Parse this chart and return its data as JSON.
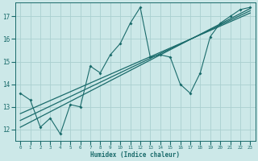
{
  "xlabel": "Humidex (Indice chaleur)",
  "x_ticks": [
    0,
    1,
    2,
    3,
    4,
    5,
    6,
    7,
    8,
    9,
    10,
    11,
    12,
    13,
    14,
    15,
    16,
    17,
    18,
    19,
    20,
    21,
    22,
    23
  ],
  "ylim": [
    11.5,
    17.6
  ],
  "xlim": [
    -0.5,
    23.5
  ],
  "yticks": [
    12,
    13,
    14,
    15,
    16,
    17
  ],
  "bg_color": "#cce8e8",
  "grid_color": "#aad0d0",
  "line_color": "#1a6b6b",
  "zigzag_x": [
    0,
    1,
    2,
    3,
    4,
    5,
    6,
    7,
    8,
    9,
    10,
    11,
    12,
    13,
    14,
    15,
    16,
    17,
    18,
    19,
    20,
    21,
    22,
    23
  ],
  "zigzag_y": [
    13.6,
    13.3,
    12.1,
    12.5,
    11.8,
    13.1,
    13.0,
    14.8,
    14.5,
    15.3,
    15.8,
    16.7,
    17.4,
    15.2,
    15.3,
    15.2,
    14.0,
    13.6,
    14.5,
    16.1,
    16.7,
    17.0,
    17.3,
    17.4
  ],
  "trend1_x": [
    0,
    23
  ],
  "trend1_y": [
    12.1,
    17.35
  ],
  "trend2_x": [
    0,
    23
  ],
  "trend2_y": [
    12.4,
    17.25
  ],
  "trend3_x": [
    0,
    23
  ],
  "trend3_y": [
    12.7,
    17.15
  ]
}
